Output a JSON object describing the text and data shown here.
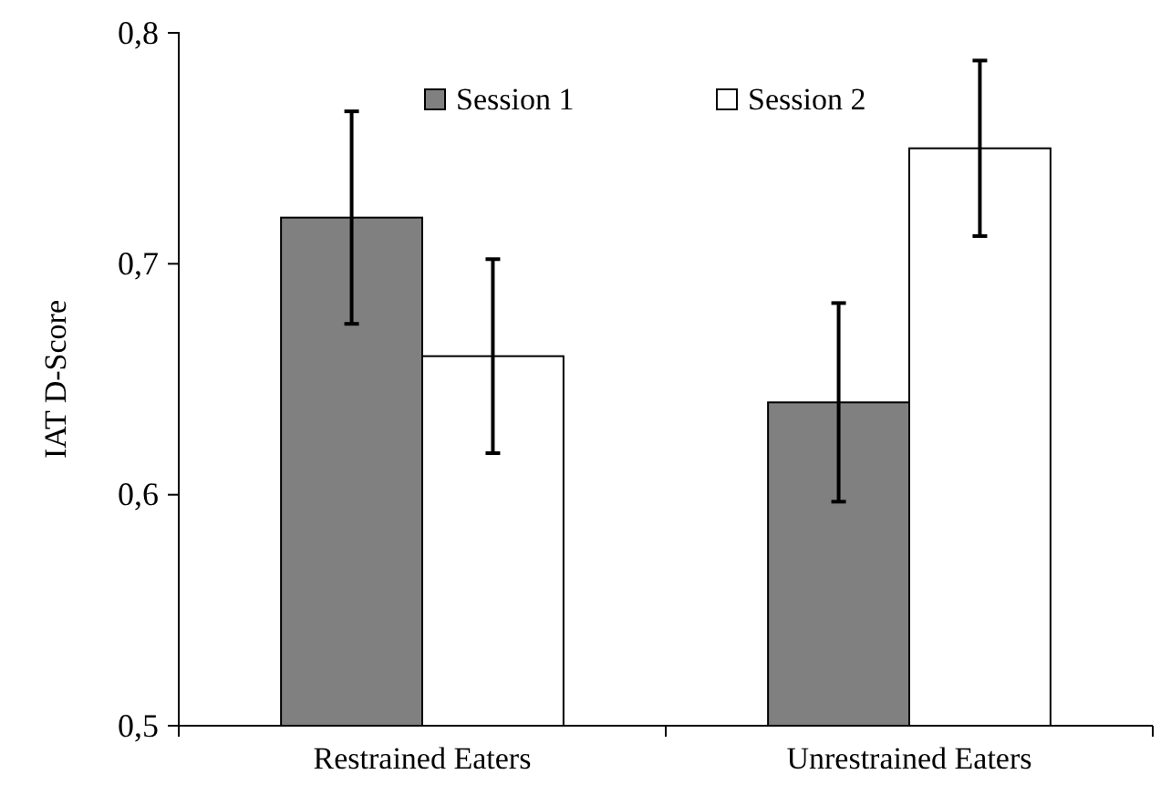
{
  "chart_data": {
    "type": "bar",
    "ylabel": "IAT D-Score",
    "categories": [
      "Restrained Eaters",
      "Unrestrained Eaters"
    ],
    "series": [
      {
        "name": "Session 1",
        "color": "#808080",
        "values": [
          0.72,
          0.64
        ],
        "errors": [
          0.046,
          0.043
        ]
      },
      {
        "name": "Session 2",
        "color": "#ffffff",
        "values": [
          0.66,
          0.75
        ],
        "errors": [
          0.042,
          0.038
        ]
      }
    ],
    "ylim": [
      0.5,
      0.8
    ],
    "yticks": [
      {
        "value": 0.5,
        "label": "0,5"
      },
      {
        "value": 0.6,
        "label": "0,6"
      },
      {
        "value": 0.7,
        "label": "0,7"
      },
      {
        "value": 0.8,
        "label": "0,8"
      }
    ],
    "grid": false,
    "legend": "top"
  }
}
